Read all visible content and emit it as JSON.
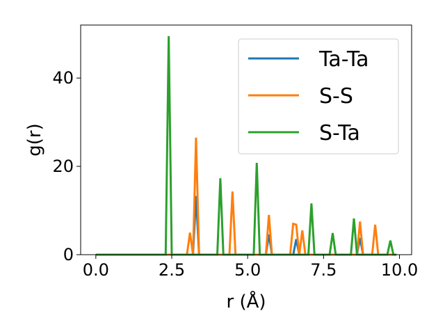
{
  "chart_data": {
    "type": "line",
    "title": "",
    "xlabel": "r (Å)",
    "ylabel": "g(r)",
    "xlim": [
      -0.5,
      10.4
    ],
    "ylim": [
      0,
      52
    ],
    "x_ticks": [
      0.0,
      2.5,
      5.0,
      7.5,
      10.0
    ],
    "x_tick_labels": [
      "0.0",
      "2.5",
      "5.0",
      "7.5",
      "10.0"
    ],
    "y_ticks": [
      0,
      20,
      40
    ],
    "y_tick_labels": [
      "0",
      "20",
      "40"
    ],
    "grid": false,
    "legend_position": "top-right",
    "series": [
      {
        "name": "Ta-Ta",
        "color": "#1f77b4",
        "x": [
          0.0,
          3.2,
          3.3,
          3.4,
          5.6,
          5.7,
          5.8,
          6.5,
          6.6,
          6.7,
          8.6,
          8.7,
          8.8,
          9.9
        ],
        "y": [
          0,
          0,
          13.3,
          0,
          0,
          4.6,
          0,
          0,
          3.5,
          0,
          0,
          3.8,
          0,
          0
        ]
      },
      {
        "name": "S-S",
        "color": "#ff7f0e",
        "x": [
          0.0,
          3.0,
          3.1,
          3.2,
          3.3,
          3.4,
          4.4,
          4.5,
          4.6,
          5.6,
          5.7,
          5.8,
          6.4,
          6.5,
          6.6,
          6.7,
          6.8,
          6.9,
          8.6,
          8.7,
          8.8,
          9.1,
          9.2,
          9.3,
          9.9
        ],
        "y": [
          0,
          0,
          5.0,
          0,
          26.5,
          0,
          0,
          14.3,
          0,
          0,
          9.0,
          0,
          0,
          7.0,
          6.8,
          0,
          5.5,
          0,
          0,
          7.5,
          0,
          0,
          6.8,
          0,
          0
        ]
      },
      {
        "name": "S-Ta",
        "color": "#2ca02c",
        "x": [
          0.0,
          2.3,
          2.4,
          2.5,
          4.0,
          4.1,
          4.2,
          5.2,
          5.3,
          5.4,
          7.0,
          7.1,
          7.2,
          7.7,
          7.8,
          7.9,
          8.4,
          8.5,
          8.6,
          9.6,
          9.7,
          9.8,
          9.9
        ],
        "y": [
          0,
          0,
          49.5,
          0,
          0,
          17.3,
          0,
          0,
          20.8,
          0,
          0,
          11.6,
          0,
          0,
          4.9,
          0,
          0,
          8.2,
          0,
          0,
          3.2,
          0,
          0
        ]
      }
    ]
  }
}
